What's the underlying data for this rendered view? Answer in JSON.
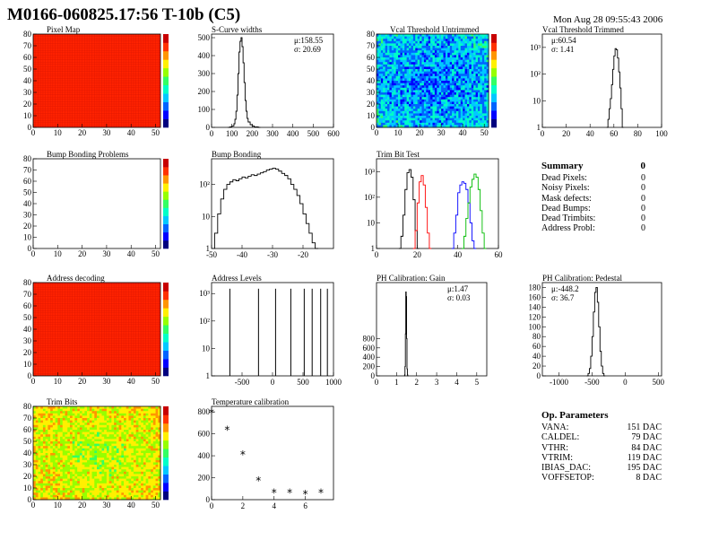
{
  "page": {
    "title": "M0166-060825.17:56 T-10b (C5)",
    "date": "Mon Aug 28 09:55:43 2006"
  },
  "chart_data": [
    {
      "id": "pixel-map",
      "type": "heatmap",
      "title": "Pixel Map",
      "x_ticks": [
        "0",
        "10",
        "20",
        "30",
        "40",
        "50"
      ],
      "y_ticks": [
        "0",
        "10",
        "20",
        "30",
        "40",
        "50",
        "60",
        "70",
        "80"
      ],
      "xlim": [
        0,
        52
      ],
      "ylim": [
        0,
        80
      ],
      "fill": "#ff2200",
      "colorbar": true
    },
    {
      "id": "s-curve-widths",
      "type": "line",
      "title": "S-Curve widths",
      "stats": [
        "μ:158.55",
        "σ: 20.69"
      ],
      "x_ticks": [
        "0",
        "100",
        "200",
        "300",
        "400",
        "500",
        "600"
      ],
      "y_ticks": [
        "0",
        "100",
        "200",
        "300",
        "400",
        "500"
      ],
      "xlim": [
        0,
        600
      ],
      "ylim": [
        0,
        520
      ],
      "x": [
        80,
        90,
        100,
        110,
        115,
        120,
        125,
        130,
        135,
        140,
        145,
        150,
        155,
        160,
        165,
        170,
        175,
        180,
        190,
        200,
        210,
        230
      ],
      "values": [
        0,
        3,
        8,
        20,
        45,
        90,
        180,
        300,
        420,
        480,
        500,
        450,
        360,
        250,
        150,
        90,
        50,
        30,
        15,
        8,
        3,
        0
      ]
    },
    {
      "id": "vcal-threshold-untrimmed",
      "type": "heatmap",
      "title": "Vcal Threshold Untrimmed",
      "x_ticks": [
        "0",
        "10",
        "20",
        "30",
        "40",
        "50"
      ],
      "y_ticks": [
        "0",
        "10",
        "20",
        "30",
        "40",
        "50",
        "60",
        "70",
        "80"
      ],
      "xlim": [
        0,
        52
      ],
      "ylim": [
        0,
        80
      ],
      "fill": "noise-cyan",
      "colorbar": true
    },
    {
      "id": "vcal-threshold-trimmed",
      "type": "line",
      "title": "Vcal Threshold Trimmed",
      "stats": [
        "μ:60.54",
        "σ: 1.41"
      ],
      "log_y": true,
      "x_ticks": [
        "0",
        "20",
        "40",
        "60",
        "80",
        "100"
      ],
      "y_ticks": [
        "1",
        "10",
        "10²",
        "10³"
      ],
      "xlim": [
        0,
        100
      ],
      "ylim_log": [
        0,
        3.5
      ],
      "x": [
        54,
        55,
        56,
        57,
        58,
        59,
        60,
        61,
        62,
        63,
        64,
        65,
        66,
        67
      ],
      "values": [
        1,
        2,
        5,
        12,
        40,
        150,
        480,
        900,
        820,
        400,
        120,
        30,
        5,
        1
      ]
    },
    {
      "id": "bump-bonding-problems",
      "type": "heatmap",
      "title": "Bump Bonding Problems",
      "x_ticks": [
        "0",
        "10",
        "20",
        "30",
        "40",
        "50"
      ],
      "y_ticks": [
        "0",
        "10",
        "20",
        "30",
        "40",
        "50",
        "60",
        "70",
        "80"
      ],
      "xlim": [
        0,
        52
      ],
      "ylim": [
        0,
        80
      ],
      "fill": "#ffffff",
      "colorbar": true
    },
    {
      "id": "bump-bonding",
      "type": "line",
      "title": "Bump Bonding",
      "log_y": true,
      "x_ticks": [
        "-50",
        "-40",
        "-30",
        "-20"
      ],
      "y_ticks": [
        "1",
        "10",
        "10²"
      ],
      "xlim": [
        -50,
        -10
      ],
      "ylim_log": [
        0,
        2.8
      ],
      "x": [
        -49,
        -48,
        -47,
        -46,
        -45,
        -44,
        -43,
        -42,
        -41,
        -40,
        -39,
        -38,
        -37,
        -36,
        -35,
        -34,
        -33,
        -32,
        -31,
        -30,
        -29,
        -28,
        -27,
        -26,
        -25,
        -24,
        -23,
        -22,
        -21,
        -20,
        -19,
        -18,
        -17,
        -16
      ],
      "values": [
        3,
        12,
        35,
        70,
        100,
        120,
        140,
        130,
        150,
        170,
        160,
        180,
        200,
        190,
        210,
        230,
        250,
        280,
        300,
        320,
        300,
        260,
        220,
        190,
        150,
        100,
        70,
        45,
        25,
        12,
        6,
        3,
        1.5,
        1
      ]
    },
    {
      "id": "trim-bit-test",
      "type": "line",
      "title": "Trim Bit Test",
      "log_y": true,
      "x_ticks": [
        "0",
        "20",
        "40",
        "60"
      ],
      "y_ticks": [
        "1",
        "10",
        "10²",
        "10³"
      ],
      "xlim": [
        0,
        60
      ],
      "ylim_log": [
        0,
        3.5
      ],
      "series": [
        {
          "color": "#000000",
          "x": [
            11,
            12,
            13,
            14,
            15,
            16,
            17,
            18,
            19,
            20
          ],
          "values": [
            1,
            3,
            20,
            200,
            900,
            1200,
            600,
            80,
            5,
            1
          ]
        },
        {
          "color": "#ff0000",
          "x": [
            18,
            19,
            20,
            21,
            22,
            23,
            24,
            25,
            26
          ],
          "values": [
            1,
            5,
            60,
            400,
            700,
            300,
            40,
            4,
            1
          ]
        },
        {
          "color": "#0000ff",
          "x": [
            37,
            38,
            39,
            40,
            41,
            42,
            43,
            44,
            45,
            46,
            47,
            48
          ],
          "values": [
            1,
            4,
            20,
            150,
            300,
            400,
            350,
            200,
            60,
            10,
            2,
            1
          ]
        },
        {
          "color": "#00bb00",
          "x": [
            42,
            43,
            44,
            45,
            46,
            47,
            48,
            49,
            50,
            51,
            52,
            53
          ],
          "values": [
            1,
            3,
            15,
            60,
            250,
            500,
            800,
            600,
            200,
            30,
            4,
            1
          ]
        }
      ]
    },
    {
      "id": "address-decoding",
      "type": "heatmap",
      "title": "Address decoding",
      "x_ticks": [
        "0",
        "10",
        "20",
        "30",
        "40",
        "50"
      ],
      "y_ticks": [
        "0",
        "10",
        "20",
        "30",
        "40",
        "50",
        "60",
        "70",
        "80"
      ],
      "xlim": [
        0,
        52
      ],
      "ylim": [
        0,
        80
      ],
      "fill": "#ff2200",
      "colorbar": true
    },
    {
      "id": "address-levels",
      "type": "line",
      "title": "Address Levels",
      "log_y": true,
      "x_ticks": [
        "-500",
        "0",
        "500",
        "1000"
      ],
      "y_ticks": [
        "1",
        "10",
        "10²",
        "10³"
      ],
      "xlim": [
        -1000,
        1000
      ],
      "ylim_log": [
        0,
        3.4
      ],
      "peaks_x": [
        -700,
        -230,
        50,
        300,
        520,
        650,
        790,
        900
      ],
      "peak_value": 1500
    },
    {
      "id": "ph-calibration-gain",
      "type": "line",
      "title": "PH Calibration: Gain",
      "stats": [
        "μ:1.47",
        "σ: 0.03"
      ],
      "x_ticks": [
        "0",
        "1",
        "2",
        "3",
        "4",
        "5"
      ],
      "y_ticks": [
        "0",
        "200",
        "400",
        "600",
        "800"
      ],
      "xlim": [
        0,
        5.5
      ],
      "ylim": [
        0,
        2000
      ],
      "x": [
        1.38,
        1.4,
        1.42,
        1.44,
        1.46,
        1.48,
        1.5,
        1.52,
        1.54,
        1.56
      ],
      "values": [
        0,
        20,
        200,
        900,
        1800,
        1700,
        800,
        150,
        20,
        0
      ]
    },
    {
      "id": "ph-calibration-pedestal",
      "type": "line",
      "title": "PH Calibration: Pedestal",
      "stats": [
        "μ:-448.2",
        "σ: 36.7"
      ],
      "x_ticks": [
        "-1000",
        "-500",
        "0",
        "500"
      ],
      "y_ticks": [
        "0",
        "20",
        "40",
        "60",
        "80",
        "100",
        "120",
        "140",
        "160",
        "180"
      ],
      "xlim": [
        -1250,
        550
      ],
      "ylim": [
        0,
        190
      ],
      "x": [
        -580,
        -560,
        -540,
        -520,
        -500,
        -480,
        -460,
        -440,
        -420,
        -400,
        -380,
        -360,
        -340,
        -320
      ],
      "values": [
        0,
        5,
        15,
        40,
        80,
        130,
        170,
        180,
        150,
        100,
        50,
        20,
        5,
        0
      ]
    },
    {
      "id": "trim-bits",
      "type": "heatmap",
      "title": "Trim Bits",
      "x_ticks": [
        "0",
        "10",
        "20",
        "30",
        "40",
        "50"
      ],
      "y_ticks": [
        "0",
        "10",
        "20",
        "30",
        "40",
        "50",
        "60",
        "70",
        "80"
      ],
      "xlim": [
        0,
        52
      ],
      "ylim": [
        0,
        80
      ],
      "fill": "noise-green",
      "colorbar": true
    },
    {
      "id": "temperature-calibration",
      "type": "scatter",
      "title": "Temperature calibration",
      "x_ticks": [
        "0",
        "2",
        "4",
        "6"
      ],
      "y_ticks": [
        "0",
        "200",
        "400",
        "600",
        "800"
      ],
      "xlim": [
        0,
        7.8
      ],
      "ylim": [
        0,
        850
      ],
      "x": [
        0,
        1,
        2,
        3,
        4,
        5,
        6,
        7
      ],
      "values": [
        790,
        635,
        410,
        170,
        60,
        60,
        50,
        60
      ]
    }
  ],
  "summary": {
    "header": "Summary",
    "header_value": "0",
    "rows": [
      {
        "label": "Dead Pixels:",
        "value": "0"
      },
      {
        "label": "Noisy Pixels:",
        "value": "0"
      },
      {
        "label": "Mask defects:",
        "value": "0"
      },
      {
        "label": "Dead Bumps:",
        "value": "0"
      },
      {
        "label": "Dead Trimbits:",
        "value": "0"
      },
      {
        "label": "Address Probl:",
        "value": "0"
      }
    ]
  },
  "op_params": {
    "header": "Op. Parameters",
    "rows": [
      {
        "label": "VANA:",
        "value": "151 DAC"
      },
      {
        "label": "CALDEL:",
        "value": "79 DAC"
      },
      {
        "label": "VTHR:",
        "value": "84 DAC"
      },
      {
        "label": "VTRIM:",
        "value": "119 DAC"
      },
      {
        "label": "IBIAS_DAC:",
        "value": "195 DAC"
      },
      {
        "label": "VOFFSETOP:",
        "value": "8 DAC"
      }
    ]
  }
}
